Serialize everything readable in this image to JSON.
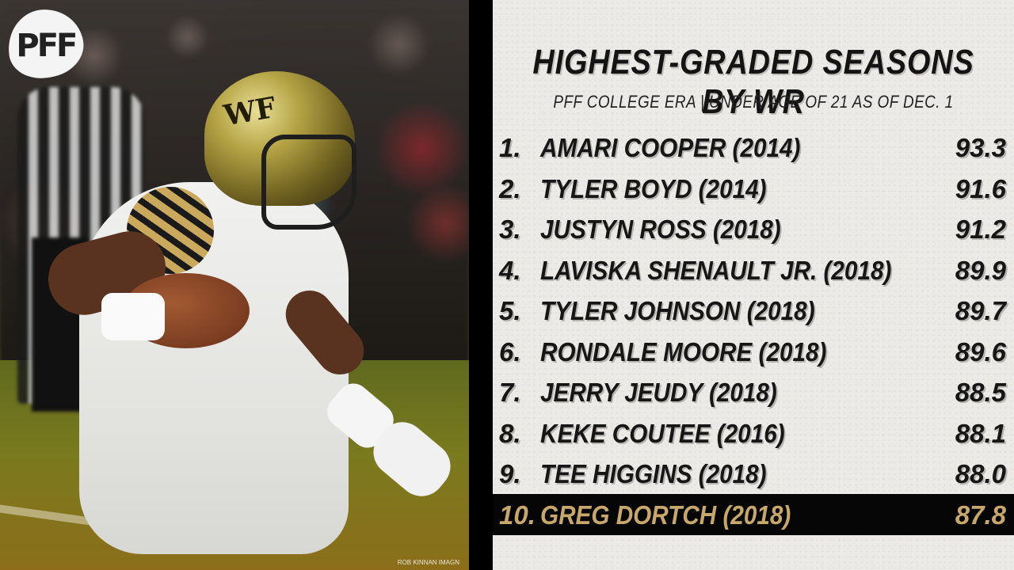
{
  "brand": {
    "logo_text": "PFF"
  },
  "photo": {
    "credit": "ROB KINNAN IMAGN",
    "helmet_logo_text": "WF"
  },
  "panel": {
    "title": "HIGHEST-GRADED SEASONS BY WR",
    "subtitle": "PFF COLLEGE ERA | UNDER AGE OF 21 AS OF DEC. 1",
    "highlight_color": "#c8a76a",
    "rows": [
      {
        "rank": "1.",
        "name": "AMARI COOPER (2014)",
        "grade": "93.3"
      },
      {
        "rank": "2.",
        "name": "TYLER BOYD (2014)",
        "grade": "91.6"
      },
      {
        "rank": "3.",
        "name": "JUSTYN ROSS (2018)",
        "grade": "91.2"
      },
      {
        "rank": "4.",
        "name": "LAVISKA SHENAULT JR. (2018)",
        "grade": "89.9"
      },
      {
        "rank": "5.",
        "name": "TYLER JOHNSON (2018)",
        "grade": "89.7"
      },
      {
        "rank": "6.",
        "name": "RONDALE MOORE (2018)",
        "grade": "89.6"
      },
      {
        "rank": "7.",
        "name": "JERRY JEUDY (2018)",
        "grade": "88.5"
      },
      {
        "rank": "8.",
        "name": "KEKE COUTEE (2016)",
        "grade": "88.1"
      },
      {
        "rank": "9.",
        "name": "TEE HIGGINS (2018)",
        "grade": "88.0"
      },
      {
        "rank": "10.",
        "name": "GREG DORTCH (2018)",
        "grade": "87.8"
      }
    ]
  }
}
